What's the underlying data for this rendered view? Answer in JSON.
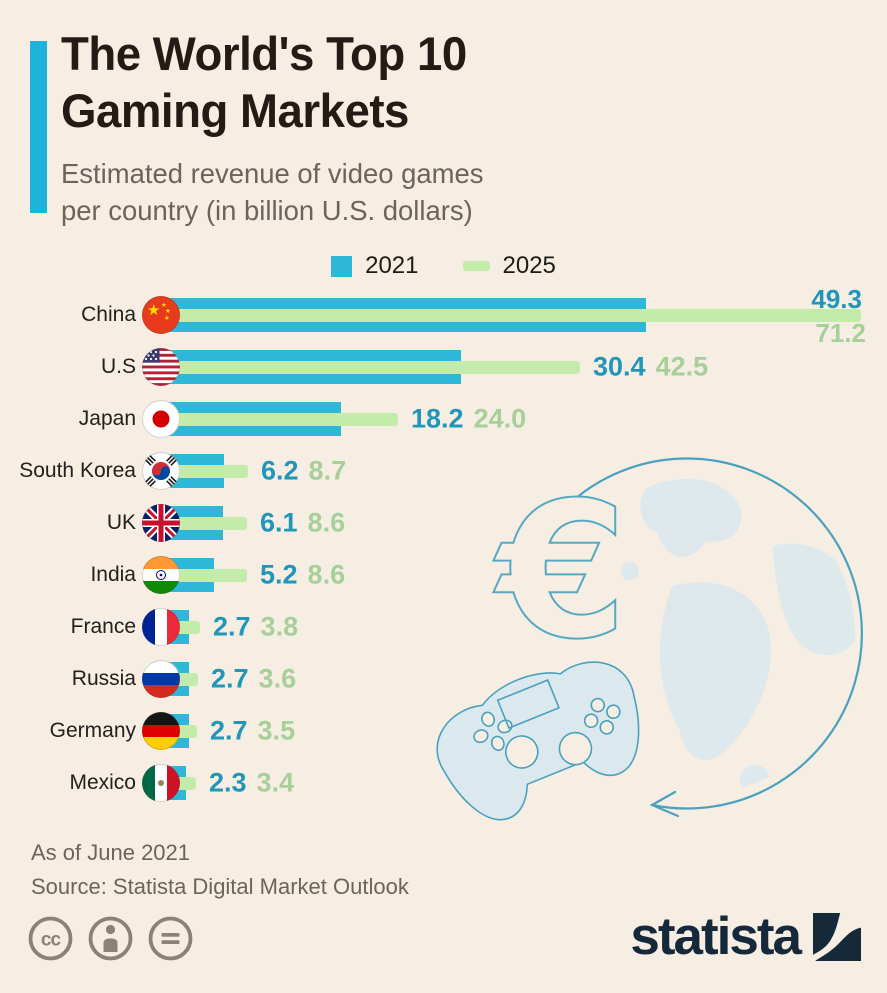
{
  "title": {
    "line1": "The World's Top 10",
    "line2": "Gaming Markets"
  },
  "subtitle": {
    "line1": "Estimated revenue of video games",
    "line2": "per country (in billion U.S. dollars)"
  },
  "legend": [
    {
      "label": "2021",
      "shape": "square",
      "color": "#2db8d9"
    },
    {
      "label": "2025",
      "shape": "dash",
      "color": "#c3ecab"
    }
  ],
  "chart_data": {
    "type": "bar",
    "orientation": "horizontal",
    "title": "The World's Top 10 Gaming Markets",
    "xlabel": "",
    "ylabel": "",
    "xlim": [
      0,
      71.2
    ],
    "grid": false,
    "legend_position": "top-center",
    "categories": [
      "China",
      "U.S",
      "Japan",
      "South Korea",
      "UK",
      "India",
      "France",
      "Russia",
      "Germany",
      "Mexico"
    ],
    "flags": [
      "cn",
      "us",
      "jp",
      "kr",
      "gb",
      "in",
      "fr",
      "ru",
      "de",
      "mx"
    ],
    "flag_icon_names": [
      "china-flag-icon",
      "us-flag-icon",
      "japan-flag-icon",
      "south-korea-flag-icon",
      "uk-flag-icon",
      "india-flag-icon",
      "france-flag-icon",
      "russia-flag-icon",
      "germany-flag-icon",
      "mexico-flag-icon"
    ],
    "series": [
      {
        "name": "2021",
        "color": "#2db8d9",
        "values": [
          49.3,
          30.4,
          18.2,
          6.2,
          6.1,
          5.2,
          2.7,
          2.7,
          2.7,
          2.3
        ],
        "value_labels": [
          "49.3",
          "30.4",
          "18.2",
          "6.2",
          "6.1",
          "5.2",
          "2.7",
          "2.7",
          "2.7",
          "2.3"
        ]
      },
      {
        "name": "2025",
        "color": "#c3ecab",
        "values": [
          71.2,
          42.5,
          24.0,
          8.7,
          8.6,
          8.6,
          3.8,
          3.6,
          3.5,
          3.4
        ],
        "value_labels": [
          "71.2",
          "42.5",
          "24.0",
          "8.7",
          "8.6",
          "8.6",
          "3.8",
          "3.6",
          "3.5",
          "3.4"
        ]
      }
    ]
  },
  "footer": {
    "as_of": "As of June 2021",
    "source": "Source: Statista Digital Market Outlook"
  },
  "branding": {
    "logo_text": "statista",
    "license_icons": [
      "cc-icon",
      "attribution-icon",
      "no-derivatives-icon"
    ]
  },
  "watermark_icons": [
    "globe-icon",
    "euro-icon",
    "game-controller-icon",
    "orbit-arrow-icon"
  ],
  "colors": {
    "background": "#f6eee3",
    "accent": "#1cb4da",
    "bar_2021": "#2db8d9",
    "bar_2025": "#c3ecab",
    "value_2021_text": "#2196b9",
    "value_2025_text": "#a7cf99",
    "title_text": "#241b16",
    "muted_text": "#6e635b",
    "logo_navy": "#15293b",
    "cc_gray": "#8d8177",
    "illustration_line": "#4aa0bf",
    "illustration_fill": "#dce8ed"
  }
}
